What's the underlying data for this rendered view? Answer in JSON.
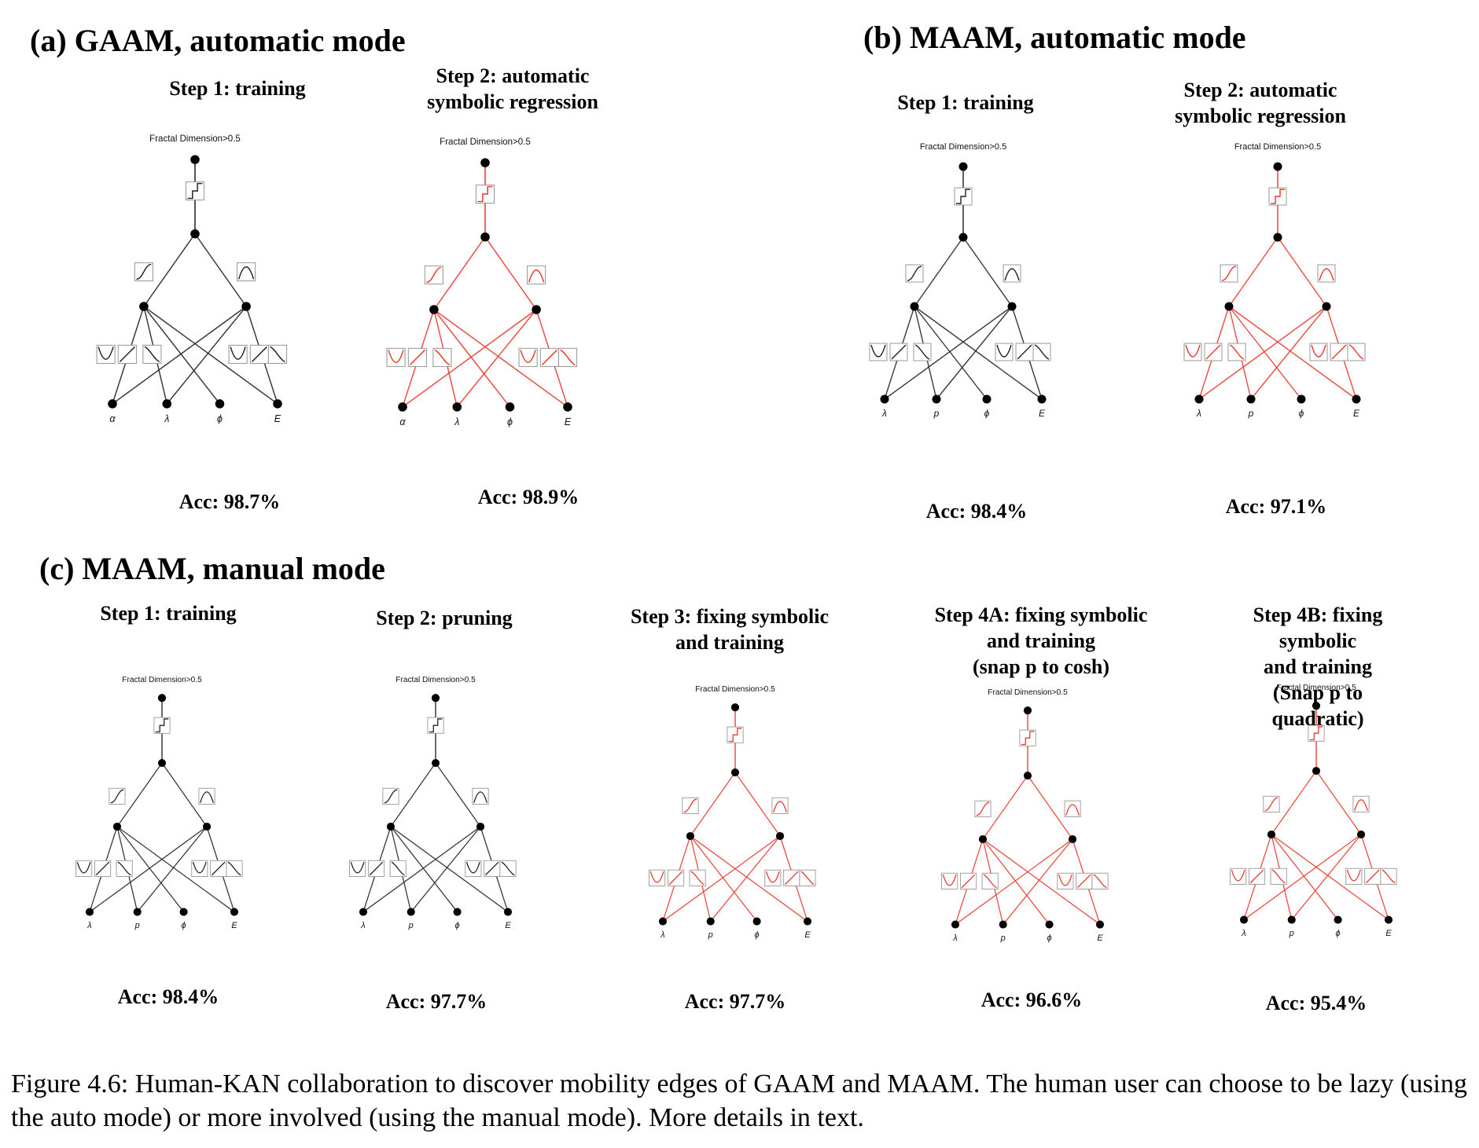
{
  "panels": {
    "a": {
      "title": "(a) GAAM, automatic mode",
      "steps": [
        {
          "label": "Step 1: training",
          "acc": "Acc: 98.7%",
          "output": "Fractal Dimension>0.5",
          "inputs": [
            "α",
            "λ",
            "ϕ",
            "E"
          ],
          "color": "#222222"
        },
        {
          "label": "Step 2: automatic\nsymbolic regression",
          "acc": "Acc: 98.9%",
          "output": "Fractal Dimension>0.5",
          "inputs": [
            "α",
            "λ",
            "ϕ",
            "E"
          ],
          "color": "#e8382c"
        }
      ]
    },
    "b": {
      "title": "(b) MAAM, automatic mode",
      "steps": [
        {
          "label": "Step 1: training",
          "acc": "Acc: 98.4%",
          "output": "Fractal Dimension>0.5",
          "inputs": [
            "λ",
            "p",
            "ϕ",
            "E"
          ],
          "color": "#222222"
        },
        {
          "label": "Step 2: automatic\nsymbolic regression",
          "acc": "Acc: 97.1%",
          "output": "Fractal Dimension>0.5",
          "inputs": [
            "λ",
            "p",
            "ϕ",
            "E"
          ],
          "color": "#e8382c"
        }
      ]
    },
    "c": {
      "title": "(c) MAAM, manual mode",
      "steps": [
        {
          "label": "Step 1: training",
          "acc": "Acc: 98.4%",
          "output": "Fractal Dimension>0.5",
          "inputs": [
            "λ",
            "p",
            "ϕ",
            "E"
          ],
          "color": "#222222"
        },
        {
          "label": "Step 2: pruning",
          "acc": "Acc: 97.7%",
          "output": "Fractal Dimension>0.5",
          "inputs": [
            "λ",
            "p",
            "ϕ",
            "E"
          ],
          "color": "#222222"
        },
        {
          "label": "Step 3: fixing symbolic\nand training",
          "acc": "Acc: 97.7%",
          "output": "Fractal Dimension>0.5",
          "inputs": [
            "λ",
            "p",
            "ϕ",
            "E"
          ],
          "color": "#e8382c"
        },
        {
          "label": "Step 4A: fixing symbolic\nand training\n(snap p to cosh)",
          "acc": "Acc: 96.6%",
          "output": "Fractal Dimension>0.5",
          "inputs": [
            "λ",
            "p",
            "ϕ",
            "E"
          ],
          "color": "#e8382c"
        },
        {
          "label": "Step 4B: fixing symbolic\nand training\n(Snap p to quadratic)",
          "acc": "Acc: 95.4%",
          "output": "Fractal Dimension>0.5",
          "inputs": [
            "λ",
            "p",
            "ϕ",
            "E"
          ],
          "color": "#e8382c"
        }
      ]
    }
  },
  "caption": "Figure 4.6: Human-KAN collaboration to discover mobility edges of GAAM and MAAM. The human user can choose to be lazy (using the auto mode) or more involved (using the manual mode). More details in text."
}
